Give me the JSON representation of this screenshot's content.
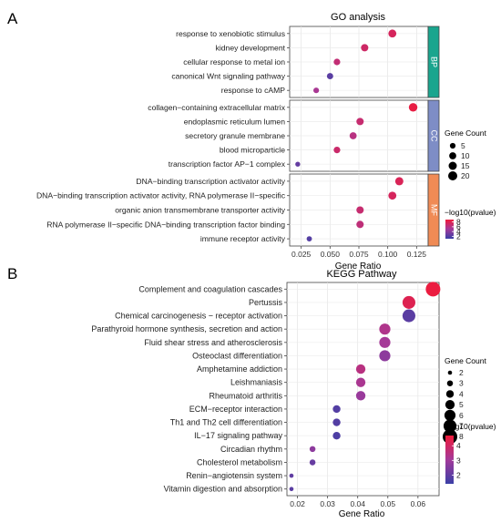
{
  "panels": {
    "a": {
      "letter": "A",
      "title": "GO analysis",
      "xlabel": "Gene Ratio",
      "xticks": [
        0.025,
        0.05,
        0.075,
        0.1,
        0.125
      ],
      "xtick_labels": [
        "0.025",
        "0.050",
        "0.075",
        "0.100",
        "0.125"
      ],
      "xlim": [
        0.015,
        0.135
      ]
    },
    "b": {
      "letter": "B",
      "title": "KEGG Pathway",
      "xlabel": "Gene Ratio",
      "xticks": [
        0.02,
        0.03,
        0.04,
        0.05,
        0.06
      ],
      "xtick_labels": [
        "0.02",
        "0.03",
        "0.04",
        "0.05",
        "0.06"
      ],
      "xlim": [
        0.0165,
        0.067
      ]
    }
  },
  "legends": {
    "go_count": {
      "title": "Gene Count",
      "values": [
        5,
        10,
        15,
        20
      ]
    },
    "go_color": {
      "title": "−log10(pvalue)",
      "ticks": [
        2,
        4,
        6,
        8
      ],
      "range": [
        1,
        9
      ]
    },
    "kegg_count": {
      "title": "Gene Count",
      "values": [
        2,
        3,
        4,
        5,
        6,
        7,
        8
      ]
    },
    "kegg_color": {
      "title": "−log10(pvalue)",
      "ticks": [
        2,
        3,
        4
      ],
      "range": [
        1.4,
        4.7
      ]
    }
  },
  "chart_data": [
    {
      "type": "scatter",
      "title": "GO analysis",
      "xlabel": "Gene Ratio",
      "groups": [
        {
          "name": "BP",
          "color": "#1aa58e",
          "terms": [
            {
              "label": "response to xenobiotic stimulus",
              "gene_ratio": 0.104,
              "count": 14,
              "neglog10p": 7.6
            },
            {
              "label": "kidney development",
              "gene_ratio": 0.08,
              "count": 11,
              "neglog10p": 7.2
            },
            {
              "label": "cellular response to metal ion",
              "gene_ratio": 0.056,
              "count": 8,
              "neglog10p": 6.6
            },
            {
              "label": "canonical Wnt signaling pathway",
              "gene_ratio": 0.05,
              "count": 7,
              "neglog10p": 2.2
            },
            {
              "label": "response to cAMP",
              "gene_ratio": 0.038,
              "count": 5,
              "neglog10p": 5.3
            }
          ]
        },
        {
          "name": "CC",
          "color": "#7e8dc6",
          "terms": [
            {
              "label": "collagen−containing extracellular matrix",
              "gene_ratio": 0.122,
              "count": 17,
              "neglog10p": 8.6
            },
            {
              "label": "endoplasmic reticulum lumen",
              "gene_ratio": 0.076,
              "count": 11,
              "neglog10p": 6.8
            },
            {
              "label": "secretory granule membrane",
              "gene_ratio": 0.07,
              "count": 10,
              "neglog10p": 6.1
            },
            {
              "label": "blood microparticle",
              "gene_ratio": 0.056,
              "count": 8,
              "neglog10p": 7.0
            },
            {
              "label": "transcription factor AP−1 complex",
              "gene_ratio": 0.022,
              "count": 3,
              "neglog10p": 2.6
            }
          ]
        },
        {
          "name": "MF",
          "color": "#f08b55",
          "terms": [
            {
              "label": "DNA−binding transcription activator activity",
              "gene_ratio": 0.11,
              "count": 15,
              "neglog10p": 7.8
            },
            {
              "label": "DNA−binding transcription activator activity, RNA polymerase II−specific",
              "gene_ratio": 0.104,
              "count": 14,
              "neglog10p": 7.6
            },
            {
              "label": "organic anion transmembrane transporter activity",
              "gene_ratio": 0.076,
              "count": 11,
              "neglog10p": 6.8
            },
            {
              "label": "RNA polymerase II−specific DNA−binding transcription factor binding",
              "gene_ratio": 0.076,
              "count": 11,
              "neglog10p": 6.4
            },
            {
              "label": "immune receptor activity",
              "gene_ratio": 0.032,
              "count": 4,
              "neglog10p": 2.0
            }
          ]
        }
      ]
    },
    {
      "type": "scatter",
      "title": "KEGG Pathway",
      "xlabel": "Gene Ratio",
      "terms": [
        {
          "label": "Complement and coagulation cascades",
          "gene_ratio": 0.065,
          "count": 8,
          "neglog10p": 4.6
        },
        {
          "label": "Pertussis",
          "gene_ratio": 0.057,
          "count": 7,
          "neglog10p": 4.3
        },
        {
          "label": "Chemical carcinogenesis − receptor activation",
          "gene_ratio": 0.057,
          "count": 7,
          "neglog10p": 1.9
        },
        {
          "label": "Parathyroid hormone synthesis, secretion and action",
          "gene_ratio": 0.049,
          "count": 6,
          "neglog10p": 3.3
        },
        {
          "label": "Fluid shear stress and atherosclerosis",
          "gene_ratio": 0.049,
          "count": 6,
          "neglog10p": 3.1
        },
        {
          "label": "Osteoclast differentiation",
          "gene_ratio": 0.049,
          "count": 6,
          "neglog10p": 2.7
        },
        {
          "label": "Amphetamine addiction",
          "gene_ratio": 0.041,
          "count": 5,
          "neglog10p": 3.5
        },
        {
          "label": "Leishmaniasis",
          "gene_ratio": 0.041,
          "count": 5,
          "neglog10p": 3.2
        },
        {
          "label": "Rheumatoid arthritis",
          "gene_ratio": 0.041,
          "count": 5,
          "neglog10p": 2.9
        },
        {
          "label": "ECM−receptor interaction",
          "gene_ratio": 0.033,
          "count": 4,
          "neglog10p": 1.8
        },
        {
          "label": "Th1 and Th2 cell differentiation",
          "gene_ratio": 0.033,
          "count": 4,
          "neglog10p": 1.8
        },
        {
          "label": "IL−17 signaling pathway",
          "gene_ratio": 0.033,
          "count": 4,
          "neglog10p": 1.7
        },
        {
          "label": "Circadian rhythm",
          "gene_ratio": 0.025,
          "count": 3,
          "neglog10p": 2.7
        },
        {
          "label": "Cholesterol metabolism",
          "gene_ratio": 0.025,
          "count": 3,
          "neglog10p": 2.1
        },
        {
          "label": "Renin−angiotensin system",
          "gene_ratio": 0.018,
          "count": 2,
          "neglog10p": 2.0
        },
        {
          "label": "Vitamin digestion and absorption",
          "gene_ratio": 0.018,
          "count": 2,
          "neglog10p": 1.9
        }
      ]
    }
  ]
}
